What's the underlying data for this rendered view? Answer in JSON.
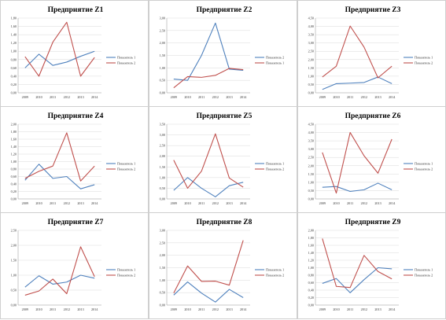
{
  "colors": {
    "blue": "#4f81bd",
    "red": "#c0504d"
  },
  "chart_data": [
    {
      "type": "line",
      "title": "Предприятие Z1",
      "x": [
        "2009",
        "2010",
        "2011",
        "2012",
        "2013",
        "2014"
      ],
      "ylim": [
        0,
        1.8
      ],
      "yticks": [
        "0,00",
        "0,20",
        "0,40",
        "0,60",
        "0,80",
        "1,00",
        "1,20",
        "1,40",
        "1,60",
        "1,80"
      ],
      "series": [
        {
          "name": "Показатель 1",
          "color": "blue",
          "values": [
            0.6,
            0.93,
            0.66,
            0.74,
            0.88,
            1.0
          ]
        },
        {
          "name": "Показатель 2",
          "color": "red",
          "values": [
            0.87,
            0.4,
            1.22,
            1.7,
            0.4,
            0.85
          ]
        }
      ]
    },
    {
      "type": "line",
      "title": "Предприятие Z2",
      "x": [
        "2009",
        "2010",
        "2011",
        "2012",
        "2013",
        "2014"
      ],
      "ylim": [
        0,
        3.0
      ],
      "yticks": [
        "0,00",
        "0,50",
        "1,00",
        "1,50",
        "2,00",
        "2,50",
        "3,00"
      ],
      "series": [
        {
          "name": "Показатель 2",
          "color": "blue",
          "values": [
            0.55,
            0.5,
            1.5,
            2.8,
            0.95,
            0.9
          ]
        },
        {
          "name": "Показатель 1",
          "color": "red",
          "values": [
            0.2,
            0.65,
            0.62,
            0.7,
            0.98,
            0.93
          ]
        }
      ]
    },
    {
      "type": "line",
      "title": "Предприятие Z3",
      "x": [
        "2009",
        "2010",
        "2011",
        "2012",
        "2013",
        "2014"
      ],
      "ylim": [
        0,
        4.5
      ],
      "yticks": [
        "0,00",
        "0,50",
        "1,00",
        "1,50",
        "2,00",
        "2,50",
        "3,00",
        "3,50",
        "4,00",
        "4,50"
      ],
      "series": [
        {
          "name": "Показатель 1",
          "color": "blue",
          "values": [
            0.2,
            0.55,
            0.58,
            0.62,
            0.95,
            0.55
          ]
        },
        {
          "name": "Показатель 2",
          "color": "red",
          "values": [
            0.95,
            1.6,
            4.02,
            2.75,
            0.9,
            1.6
          ]
        }
      ]
    },
    {
      "type": "line",
      "title": "Предприятие Z4",
      "x": [
        "2009",
        "2010",
        "2011",
        "2012",
        "2013",
        "2014"
      ],
      "ylim": [
        0,
        2.0
      ],
      "yticks": [
        "0,00",
        "0,20",
        "0,40",
        "0,60",
        "0,80",
        "1,00",
        "1,20",
        "1,40",
        "1,60",
        "1,80",
        "2,00"
      ],
      "series": [
        {
          "name": "Показатель 1",
          "color": "blue",
          "values": [
            0.5,
            0.93,
            0.55,
            0.6,
            0.27,
            0.38
          ]
        },
        {
          "name": "Показатель 2",
          "color": "red",
          "values": [
            0.55,
            0.74,
            0.88,
            1.77,
            0.48,
            0.88
          ]
        }
      ]
    },
    {
      "type": "line",
      "title": "Предприятие Z5",
      "x": [
        "2009",
        "2010",
        "2011",
        "2012",
        "2013",
        "2014"
      ],
      "ylim": [
        0,
        3.5
      ],
      "yticks": [
        "0,00",
        "0,50",
        "1,00",
        "1,50",
        "2,00",
        "2,50",
        "3,00",
        "3,50"
      ],
      "series": [
        {
          "name": "Показатель 1",
          "color": "blue",
          "values": [
            0.4,
            1.0,
            0.5,
            0.1,
            0.62,
            0.78
          ]
        },
        {
          "name": "Показатель 2",
          "color": "red",
          "values": [
            1.82,
            0.5,
            1.3,
            3.05,
            0.98,
            0.55
          ]
        }
      ]
    },
    {
      "type": "line",
      "title": "Предприятие Z6",
      "x": [
        "2009",
        "2010",
        "2011",
        "2012",
        "2013",
        "2014"
      ],
      "ylim": [
        0,
        4.5
      ],
      "yticks": [
        "0,00",
        "0,50",
        "1,00",
        "1,50",
        "2,00",
        "2,50",
        "3,00",
        "3,50",
        "4,00",
        "4,50"
      ],
      "series": [
        {
          "name": "Показатель 1",
          "color": "blue",
          "values": [
            0.7,
            0.75,
            0.45,
            0.55,
            0.95,
            0.55
          ]
        },
        {
          "name": "Показатель 2",
          "color": "red",
          "values": [
            2.8,
            0.35,
            4.0,
            2.6,
            1.55,
            3.6
          ]
        }
      ]
    },
    {
      "type": "line",
      "title": "Предприятие Z7",
      "x": [
        "2009",
        "2010",
        "2011",
        "2012",
        "2013",
        "2014"
      ],
      "ylim": [
        0,
        2.5
      ],
      "yticks": [
        "0,00",
        "0,50",
        "1,00",
        "1,50",
        "2,00",
        "2,50"
      ],
      "series": [
        {
          "name": "Показатель 1",
          "color": "blue",
          "values": [
            0.6,
            0.98,
            0.7,
            0.77,
            1.0,
            0.9
          ]
        },
        {
          "name": "Показатель 2",
          "color": "red",
          "values": [
            0.33,
            0.47,
            0.87,
            0.38,
            1.95,
            0.95
          ]
        }
      ]
    },
    {
      "type": "line",
      "title": "Предприятие Z8",
      "x": [
        "2009",
        "2010",
        "2011",
        "2012",
        "2013",
        "2014"
      ],
      "ylim": [
        0,
        3.0
      ],
      "yticks": [
        "0,00",
        "0,50",
        "1,00",
        "1,50",
        "2,00",
        "2,50",
        "3,00"
      ],
      "series": [
        {
          "name": "Показатель 1",
          "color": "blue",
          "values": [
            0.4,
            0.93,
            0.48,
            0.12,
            0.63,
            0.3
          ]
        },
        {
          "name": "Показатель 2",
          "color": "red",
          "values": [
            0.48,
            1.57,
            0.95,
            0.96,
            0.8,
            2.6
          ]
        }
      ]
    },
    {
      "type": "line",
      "title": "Предприятие Z9",
      "x": [
        "2009",
        "2010",
        "2011",
        "2012",
        "2013",
        "2014"
      ],
      "ylim": [
        0,
        2.0
      ],
      "yticks": [
        "0,00",
        "0,20",
        "0,40",
        "0,60",
        "0,80",
        "1,00",
        "1,20",
        "1,40",
        "1,60",
        "1,80",
        "2,00"
      ],
      "series": [
        {
          "name": "Показатель 1",
          "color": "blue",
          "values": [
            0.58,
            0.71,
            0.33,
            0.68,
            1.0,
            0.97
          ]
        },
        {
          "name": "Показатель 2",
          "color": "red",
          "values": [
            1.78,
            0.5,
            0.47,
            1.33,
            0.9,
            0.7
          ]
        }
      ]
    }
  ]
}
